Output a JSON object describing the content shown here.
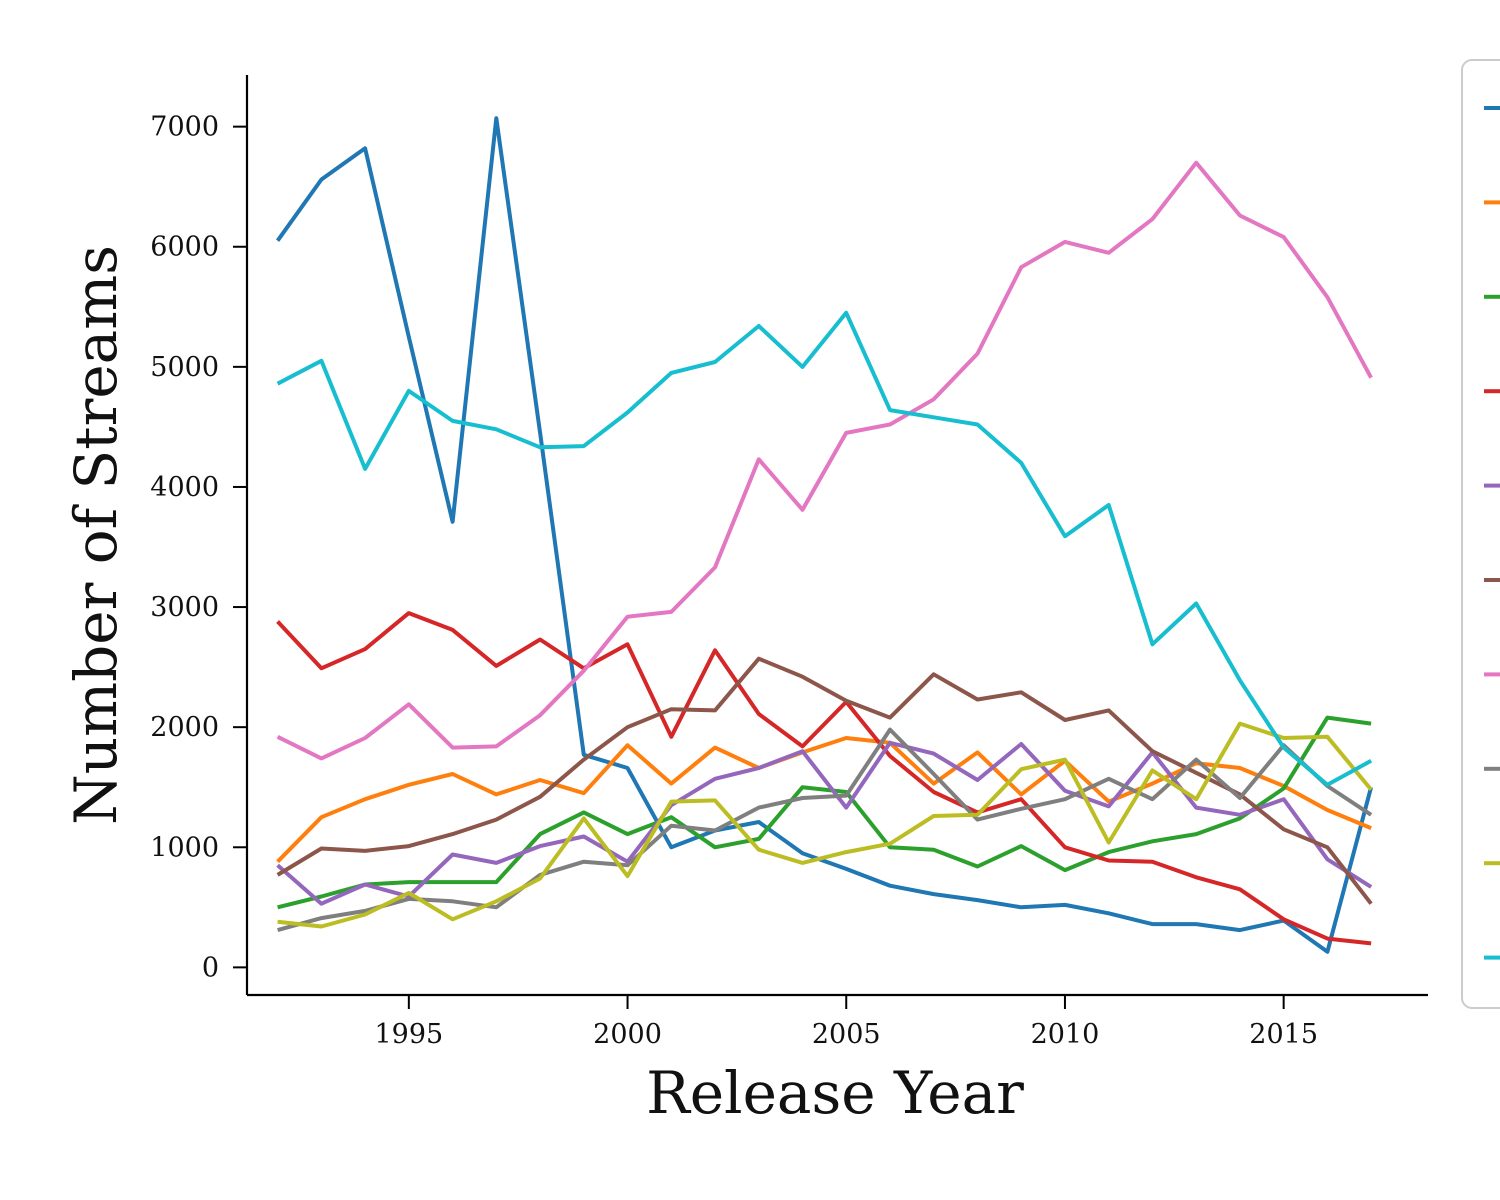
{
  "chart_data": {
    "type": "line",
    "xlabel": "Release Year",
    "ylabel": "Number of Streams",
    "xlim": [
      1991.3,
      2018.3
    ],
    "ylim": [
      -230,
      7430
    ],
    "x_ticks": [
      1995,
      2000,
      2005,
      2010,
      2015
    ],
    "y_ticks": [
      0,
      1000,
      2000,
      3000,
      4000,
      5000,
      6000,
      7000
    ],
    "grid": false,
    "legend": "right, outside plot area (series names not visible)",
    "x": [
      1992,
      1993,
      1994,
      1995,
      1996,
      1997,
      1998,
      1999,
      2000,
      2001,
      2002,
      2003,
      2004,
      2005,
      2006,
      2007,
      2008,
      2009,
      2010,
      2011,
      2012,
      2013,
      2014,
      2015,
      2016,
      2017
    ],
    "series": [
      {
        "color": "#1f77b4",
        "values": [
          6050,
          6560,
          6820,
          5250,
          3710,
          7070,
          4450,
          1770,
          1660,
          1000,
          1140,
          1210,
          950,
          820,
          680,
          610,
          560,
          500,
          520,
          450,
          360,
          360,
          310,
          390,
          130,
          1500
        ]
      },
      {
        "color": "#ff7f0e",
        "values": [
          880,
          1250,
          1400,
          1520,
          1610,
          1440,
          1560,
          1450,
          1850,
          1530,
          1830,
          1660,
          1790,
          1910,
          1870,
          1530,
          1790,
          1440,
          1720,
          1380,
          1530,
          1700,
          1660,
          1510,
          1310,
          1160
        ]
      },
      {
        "color": "#2ca02c",
        "values": [
          500,
          590,
          690,
          710,
          710,
          710,
          1110,
          1290,
          1110,
          1250,
          1000,
          1070,
          1500,
          1460,
          1000,
          980,
          840,
          1010,
          810,
          960,
          1050,
          1110,
          1240,
          1490,
          2080,
          2030
        ]
      },
      {
        "color": "#d62728",
        "values": [
          2880,
          2490,
          2650,
          2950,
          2810,
          2510,
          2730,
          2490,
          2690,
          1920,
          2640,
          2110,
          1840,
          2210,
          1760,
          1460,
          1290,
          1400,
          1000,
          890,
          880,
          750,
          650,
          400,
          240,
          200
        ]
      },
      {
        "color": "#9467bd",
        "values": [
          850,
          530,
          690,
          590,
          940,
          870,
          1010,
          1090,
          880,
          1350,
          1570,
          1660,
          1800,
          1330,
          1870,
          1780,
          1560,
          1860,
          1470,
          1340,
          1790,
          1330,
          1270,
          1400,
          900,
          670
        ]
      },
      {
        "color": "#8c564b",
        "values": [
          770,
          990,
          970,
          1010,
          1110,
          1230,
          1420,
          1730,
          2000,
          2150,
          2140,
          2570,
          2420,
          2220,
          2080,
          2440,
          2230,
          2290,
          2060,
          2140,
          1800,
          1620,
          1440,
          1150,
          1000,
          530
        ]
      },
      {
        "color": "#e377c2",
        "values": [
          1920,
          1740,
          1910,
          2190,
          1830,
          1840,
          2100,
          2470,
          2920,
          2960,
          3330,
          4230,
          3810,
          4450,
          4520,
          4730,
          5110,
          5830,
          6040,
          5950,
          6230,
          6700,
          6260,
          6080,
          5580,
          4910
        ]
      },
      {
        "color": "#7f7f7f",
        "values": [
          310,
          410,
          470,
          570,
          550,
          500,
          770,
          880,
          850,
          1180,
          1140,
          1330,
          1410,
          1430,
          1980,
          1610,
          1230,
          1320,
          1400,
          1570,
          1400,
          1730,
          1410,
          1850,
          1510,
          1270
        ]
      },
      {
        "color": "#bcbd22",
        "values": [
          380,
          340,
          440,
          620,
          400,
          550,
          740,
          1240,
          760,
          1380,
          1390,
          980,
          870,
          960,
          1030,
          1260,
          1270,
          1650,
          1730,
          1040,
          1640,
          1400,
          2030,
          1910,
          1920,
          1480
        ]
      },
      {
        "color": "#17becf",
        "values": [
          4860,
          5050,
          4150,
          4800,
          4550,
          4480,
          4330,
          4340,
          4620,
          4950,
          5040,
          5340,
          5000,
          5450,
          4640,
          4580,
          4520,
          4200,
          3590,
          3850,
          2690,
          3030,
          2390,
          1830,
          1520,
          1720
        ]
      }
    ]
  }
}
